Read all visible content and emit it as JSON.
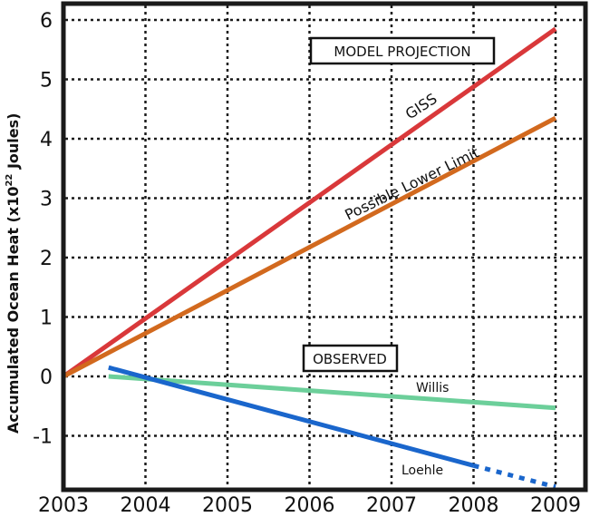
{
  "chart_data": {
    "type": "line",
    "title": "",
    "xlabel": "",
    "ylabel": "Accumulated Ocean Heat (x10²² Joules)",
    "ylabel_parts": {
      "main": "Accumulated Ocean Heat (x10",
      "sup": "22",
      "end": " Joules)"
    },
    "xlim": [
      2003,
      2009
    ],
    "ylim": [
      -1.9,
      6.3
    ],
    "grid": true,
    "x_ticks": [
      "2003",
      "2004",
      "2005",
      "2006",
      "2007",
      "2008",
      "2009"
    ],
    "x_tick_values": [
      2003,
      2004,
      2005,
      2006,
      2007,
      2008,
      2009
    ],
    "y_ticks": [
      "-1",
      "0",
      "1",
      "2",
      "3",
      "4",
      "5",
      "6"
    ],
    "y_tick_values": [
      -1,
      0,
      1,
      2,
      3,
      4,
      5,
      6
    ],
    "annotations": {
      "model_projection": "MODEL PROJECTION",
      "observed": "OBSERVED"
    },
    "series": [
      {
        "name": "GISS",
        "group": "model",
        "color": "#d9383a",
        "style": "solid",
        "x": [
          2003,
          2009
        ],
        "y": [
          0.0,
          5.85
        ]
      },
      {
        "name": "Possible Lower Limit",
        "group": "model",
        "color": "#d2691e",
        "style": "solid",
        "x": [
          2003,
          2009
        ],
        "y": [
          0.0,
          4.35
        ]
      },
      {
        "name": "Willis",
        "group": "observed",
        "color": "#6ccf9a",
        "style": "solid",
        "x": [
          2003.55,
          2009
        ],
        "y": [
          0.0,
          -0.53
        ]
      },
      {
        "name": "Loehle",
        "group": "observed",
        "color": "#1a66cc",
        "style": "solid",
        "x": [
          2003.55,
          2008
        ],
        "y": [
          0.15,
          -1.5
        ]
      },
      {
        "name": "Loehle (extrapolated)",
        "group": "observed",
        "color": "#1a66cc",
        "style": "dotted",
        "x": [
          2008,
          2009
        ],
        "y": [
          -1.5,
          -1.86
        ]
      }
    ],
    "series_labels": {
      "giss": "GISS",
      "lower": "Possible Lower Limit",
      "willis": "Willis",
      "loehle": "Loehle"
    }
  }
}
